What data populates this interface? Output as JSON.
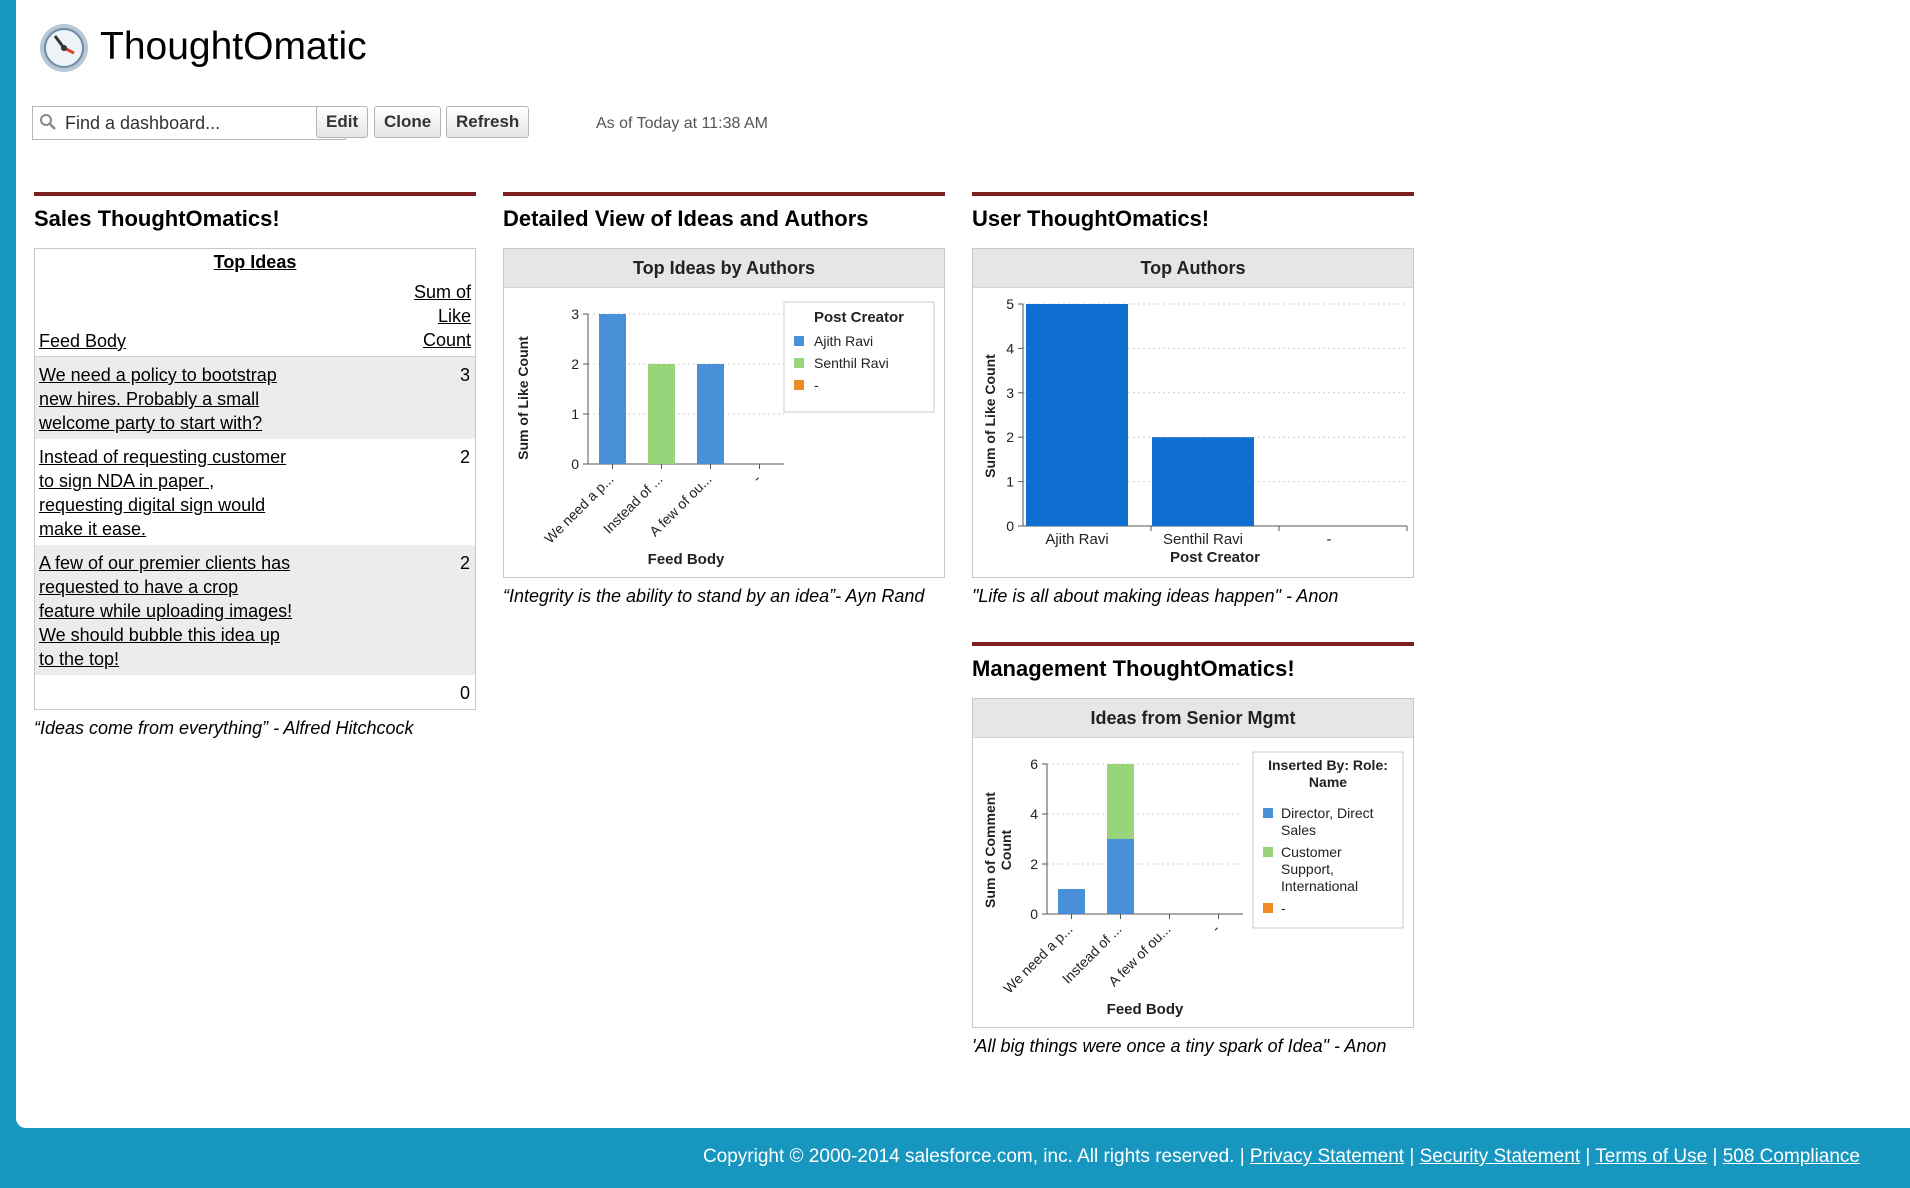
{
  "header": {
    "app_title": "ThoughtOmatic",
    "search_placeholder": "Find a dashboard...",
    "buttons": {
      "edit": "Edit",
      "clone": "Clone",
      "refresh": "Refresh"
    },
    "as_of": "As of Today at 11:38 AM"
  },
  "colors": {
    "accent_bar": "#7d1f1f",
    "blue": "#4a90d9",
    "dark_blue": "#0f6fd0",
    "green": "#97d47a",
    "orange": "#f08a24",
    "frame": "#1797c0"
  },
  "sections": {
    "sales": {
      "title": "Sales ThoughtOmatics!",
      "table_title": "Top Ideas",
      "col_feed": "Feed Body",
      "col_sum_l1": "Sum of",
      "col_sum_l2": "Like",
      "col_sum_l3": "Count",
      "rows": [
        {
          "text": "We need a policy to bootstrap new hires. Probably a small welcome party to start with?",
          "count": "3"
        },
        {
          "text": "Instead of requesting customer to sign NDA in paper , requesting digital sign would make it ease.",
          "count": "2"
        },
        {
          "text": "A few of our premier clients has requested to have a crop feature while uploading images! We should bubble this idea up to the top!",
          "count": "2"
        },
        {
          "text": "",
          "count": "0"
        }
      ],
      "quote": "“Ideas come from everything” - Alfred Hitchcock"
    },
    "detailed": {
      "title": "Detailed View of Ideas and Authors",
      "chart_title": "Top Ideas by Authors",
      "quote": "“Integrity is the ability to stand by an idea”- Ayn Rand"
    },
    "user": {
      "title": "User ThoughtOmatics!",
      "chart_title": "Top Authors",
      "quote": "\"Life is all about making ideas happen\" - Anon"
    },
    "management": {
      "title": "Management ThoughtOmatics!",
      "chart_title": "Ideas from Senior Mgmt",
      "quote": "'All big things were once a tiny spark of Idea\" - Anon"
    }
  },
  "chart_data": [
    {
      "type": "bar",
      "title": "Top Ideas by Authors",
      "categories": [
        "We need a p...",
        "Instead of ...",
        "A few of ou...",
        "-"
      ],
      "series": [
        {
          "name": "Ajith Ravi",
          "values": [
            3,
            0,
            2,
            0
          ]
        },
        {
          "name": "Senthil Ravi",
          "values": [
            0,
            2,
            0,
            0
          ]
        },
        {
          "name": "-",
          "values": [
            0,
            0,
            0,
            0
          ]
        }
      ],
      "xlabel": "Feed Body",
      "ylabel": "Sum of Like Count",
      "yticks": [
        "0",
        "1",
        "2",
        "3"
      ],
      "ylim": [
        0,
        3
      ],
      "legend_title": "Post Creator"
    },
    {
      "type": "bar",
      "title": "Top Authors",
      "categories": [
        "Ajith Ravi",
        "Senthil Ravi",
        "-"
      ],
      "values": [
        5,
        2,
        0
      ],
      "xlabel": "Post Creator",
      "ylabel": "Sum of Like Count",
      "yticks": [
        "0",
        "1",
        "2",
        "3",
        "4",
        "5"
      ],
      "ylim": [
        0,
        5
      ]
    },
    {
      "type": "bar",
      "title": "Ideas from Senior Mgmt",
      "categories": [
        "We need a p...",
        "Instead of ...",
        "A few of ou...",
        "-"
      ],
      "series": [
        {
          "name": "Director, Direct Sales",
          "values": [
            1,
            3,
            0,
            0
          ]
        },
        {
          "name": "Customer Support, International",
          "values": [
            0,
            3,
            0,
            0
          ]
        },
        {
          "name": "-",
          "values": [
            0,
            0,
            0,
            0
          ]
        }
      ],
      "stacked": true,
      "xlabel": "Feed Body",
      "ylabel": "Sum of Comment Count",
      "ylabel_lines": [
        "Sum of Comment",
        "Count"
      ],
      "yticks": [
        "0",
        "2",
        "4",
        "6"
      ],
      "ylim": [
        0,
        6
      ],
      "legend_title": "Inserted By: Role: Name",
      "legend_title_lines": [
        "Inserted By: Role:",
        "Name"
      ],
      "legend_lines": [
        [
          "Director, Direct",
          "Sales"
        ],
        [
          "Customer",
          "Support,",
          "International"
        ],
        [
          "-"
        ]
      ]
    }
  ],
  "footer": {
    "copyright": "Copyright © 2000-2014 salesforce.com, inc. All rights reserved. |",
    "privacy": "Privacy Statement",
    "security": "Security Statement",
    "terms": "Terms of Use",
    "compliance": "508 Compliance",
    "sep": "|"
  }
}
